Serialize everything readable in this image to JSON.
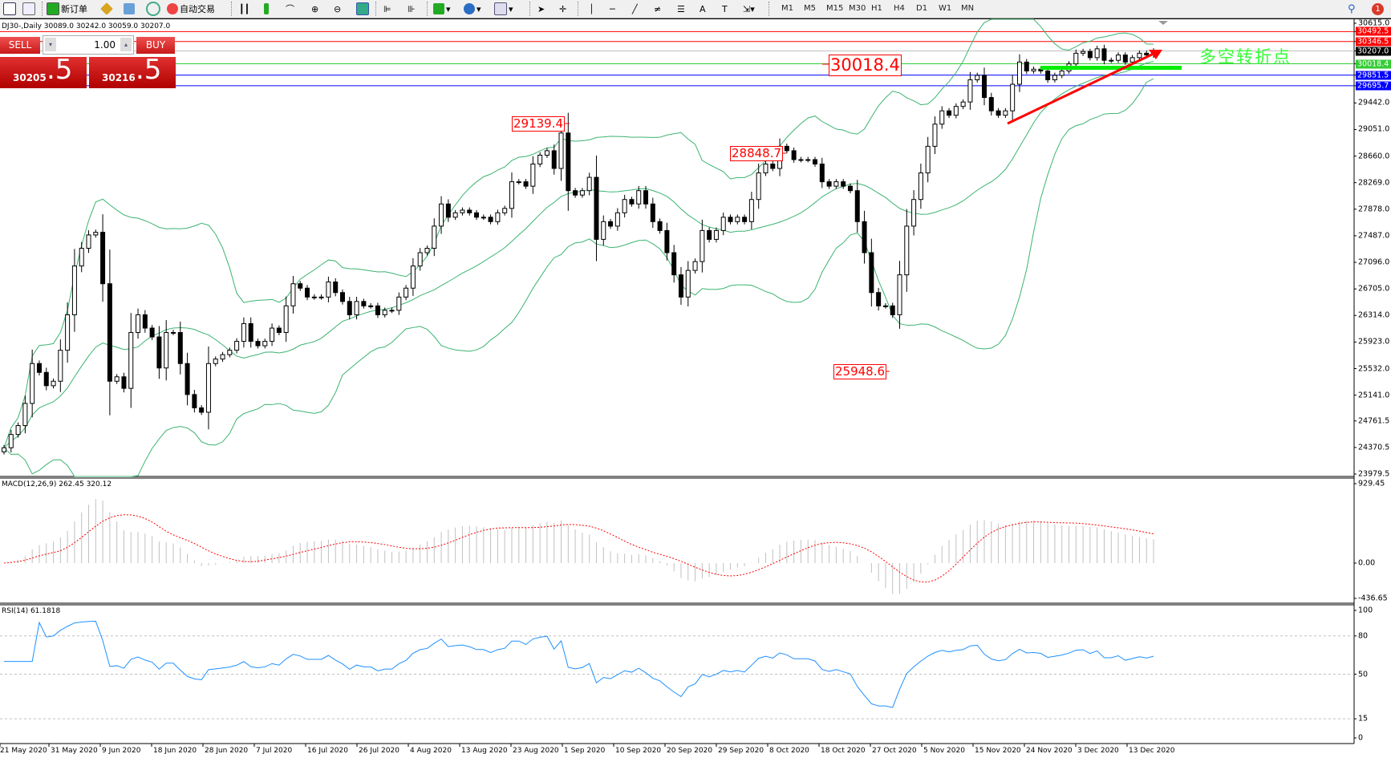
{
  "toolbar": {
    "new_order": "新订单",
    "auto_trading": "自动交易",
    "timeframes": [
      "M1",
      "M5",
      "M15",
      "M30",
      "H1",
      "H4",
      "D1",
      "W1",
      "MN"
    ],
    "notification_count": "1"
  },
  "chart": {
    "title": "DJ30-,Daily  30089.0 30242.0 30059.0 30207.0",
    "price_axis": [
      "30615.0",
      "29442.0",
      "29051.0",
      "28660.0",
      "28269.0",
      "27878.0",
      "27487.0",
      "27096.0",
      "26705.0",
      "26314.0",
      "25923.0",
      "25532.0",
      "25141.0",
      "24761.5",
      "24370.5",
      "23979.5"
    ],
    "price_levels": [
      {
        "value": "30492.5",
        "color": "#ff0000"
      },
      {
        "value": "30346.5",
        "color": "#ff0000"
      },
      {
        "value": "30207.0",
        "color": "#000000",
        "line": "#c0c0c0"
      },
      {
        "value": "30018.4",
        "color": "#33cc33"
      },
      {
        "value": "29851.5",
        "color": "#0000ff"
      },
      {
        "value": "29695.7",
        "color": "#0000ff"
      }
    ],
    "annotations": {
      "high1": "29139.4",
      "high2": "28848.7",
      "low": "25948.6",
      "pivot": "30018.4"
    },
    "note": "多空转折点",
    "closes": [
      24367,
      24562,
      24693,
      25019,
      25606,
      25476,
      25280,
      25346,
      25802,
      26324,
      27042,
      27303,
      27499,
      27538,
      26781,
      25346,
      25411,
      25241,
      26063,
      26324,
      26128,
      25998,
      25541,
      26063,
      26063,
      25606,
      25150,
      24954,
      24889,
      25606,
      25672,
      25737,
      25802,
      25933,
      26194,
      25933,
      25868,
      25933,
      26128,
      26063,
      26455,
      26781,
      26716,
      26585,
      26585,
      26585,
      26807,
      26651,
      26520,
      26324,
      26520,
      26455,
      26455,
      26324,
      26390,
      26390,
      26585,
      26716,
      27042,
      27238,
      27303,
      27629,
      27955,
      27760,
      27825,
      27864,
      27825,
      27760,
      27760,
      27695,
      27825,
      27890,
      28282,
      28282,
      28217,
      28543,
      28673,
      28739,
      28478,
      29000,
      28151,
      28086,
      28151,
      28347,
      27434,
      27695,
      27629,
      27825,
      28021,
      27955,
      28151,
      27955,
      27695,
      27564,
      27238,
      26912,
      26585,
      26977,
      27107,
      27564,
      27434,
      27564,
      27760,
      27695,
      27760,
      27695,
      28021,
      28412,
      28543,
      28478,
      28804,
      28739,
      28608,
      28608,
      28608,
      28543,
      28282,
      28217,
      28282,
      28217,
      28151,
      27695,
      27238,
      26651,
      26455,
      26455,
      26324,
      26912,
      27629,
      28021,
      28412,
      28804,
      29130,
      29326,
      29261,
      29391,
      29456,
      29783,
      29848,
      29522,
      29326,
      29261,
      29326,
      29717,
      30044,
      29913,
      29939,
      29913,
      29783,
      29848,
      29913,
      30017,
      30174,
      30200,
      30109,
      30239,
      30070,
      30070,
      30148,
      30044,
      30109,
      30174,
      30148,
      30207
    ],
    "dates": [
      "21 May 2020",
      "31 May 2020",
      "9 Jun 2020",
      "18 Jun 2020",
      "28 Jun 2020",
      "7 Jul 2020",
      "16 Jul 2020",
      "26 Jul 2020",
      "4 Aug 2020",
      "13 Aug 2020",
      "23 Aug 2020",
      "1 Sep 2020",
      "10 Sep 2020",
      "20 Sep 2020",
      "29 Sep 2020",
      "8 Oct 2020",
      "18 Oct 2020",
      "27 Oct 2020",
      "5 Nov 2020",
      "15 Nov 2020",
      "24 Nov 2020",
      "3 Dec 2020",
      "13 Dec 2020"
    ]
  },
  "macd": {
    "label": "MACD(12,26,9) 262.45 320.12",
    "axis": [
      "929.45",
      "0.00",
      "-436.65"
    ]
  },
  "rsi": {
    "label": "RSI(14) 61.1818",
    "axis": [
      "100",
      "80",
      "50",
      "15",
      "0"
    ]
  },
  "trade": {
    "sell": "SELL",
    "buy": "BUY",
    "lot": "1.00",
    "sell_price_main": "30205",
    "sell_price_tail": ".5",
    "buy_price_main": "30216",
    "buy_price_tail": ".5"
  },
  "colors": {
    "bands": "#3cb371",
    "rsi": "#1e90ff",
    "signal": "#ff0000",
    "histogram": "#c0c0c0",
    "sell_bg": "#c81818"
  }
}
